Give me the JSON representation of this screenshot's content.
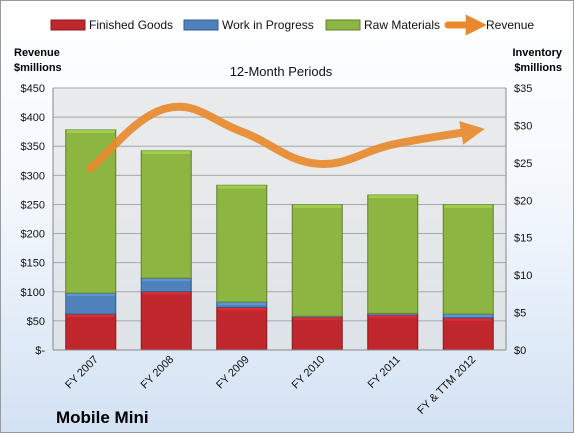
{
  "chart_data": {
    "type": "bar",
    "stacked": true,
    "title": "12-Month Periods",
    "company": "Mobile Mini",
    "categories": [
      "FY 2007",
      "FY 2008",
      "FY 2009",
      "FY 2010",
      "FY 2011",
      "FY & TTM 2012"
    ],
    "left_axis": {
      "label_line1": "Revenue",
      "label_line2": "$millions",
      "ylim": [
        0,
        450
      ],
      "ticks": [
        0,
        50,
        100,
        150,
        200,
        250,
        300,
        350,
        400,
        450
      ],
      "tick_labels": [
        "$-",
        "$50",
        "$100",
        "$150",
        "$200",
        "$250",
        "$300",
        "$350",
        "$400",
        "$450"
      ]
    },
    "right_axis": {
      "label_line1": "Inventory",
      "label_line2": "$millions",
      "ylim": [
        0,
        35
      ],
      "ticks": [
        0,
        5,
        10,
        15,
        20,
        25,
        30,
        35
      ],
      "tick_labels": [
        "$0",
        "$5",
        "$10",
        "$15",
        "$20",
        "$25",
        "$30",
        "$35"
      ]
    },
    "series": [
      {
        "name": "Finished Goods",
        "axis": "right",
        "kind": "bar",
        "color": "#c0272d",
        "values": [
          4.8,
          7.8,
          5.7,
          4.4,
          4.7,
          4.3
        ]
      },
      {
        "name": "Work in Progress",
        "axis": "right",
        "kind": "bar",
        "color": "#4f81bd",
        "values": [
          2.8,
          1.8,
          0.7,
          0.1,
          0.2,
          0.5
        ]
      },
      {
        "name": "Raw Materials",
        "axis": "right",
        "kind": "bar",
        "color": "#8db542",
        "values": [
          21.8,
          17.0,
          15.6,
          14.9,
          15.8,
          14.6
        ]
      },
      {
        "name": "Revenue",
        "axis": "left",
        "kind": "line",
        "color": "#e8892c",
        "values": [
          312,
          415,
          375,
          320,
          353,
          375
        ]
      }
    ],
    "grid": true,
    "legend_position": "top"
  }
}
